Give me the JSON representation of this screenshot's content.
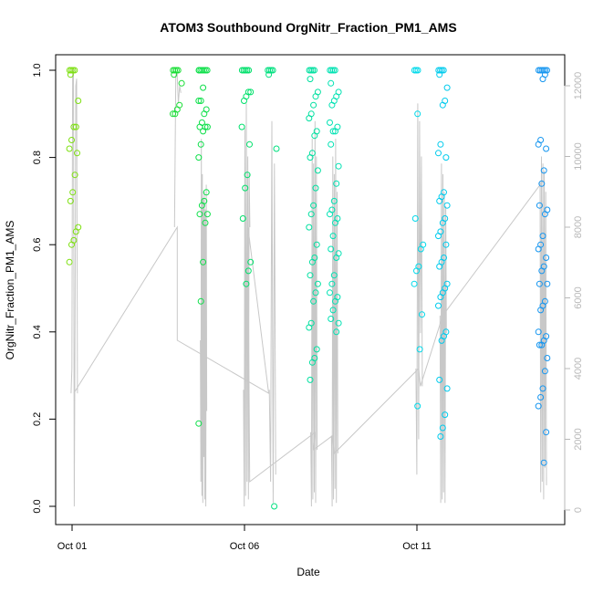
{
  "chart_data": {
    "type": "scatter",
    "title": "ATOM3 Southbound OrgNitr_Fraction_PM1_AMS",
    "xlabel": "Date",
    "ylabel": "OrgNitr_Fraction_PM1_AMS",
    "x_range_days": [
      0.0,
      14.0
    ],
    "ylim": [
      0.0,
      1.0
    ],
    "y2lim": [
      0,
      12000
    ],
    "x_ticks": [
      {
        "day": 0,
        "label": "Oct 01"
      },
      {
        "day": 5,
        "label": "Oct 06"
      },
      {
        "day": 10,
        "label": "Oct 11"
      }
    ],
    "y_ticks": [
      "0.0",
      "0.2",
      "0.4",
      "0.6",
      "0.8",
      "1.0"
    ],
    "y_tick_values": [
      0,
      0.2,
      0.4,
      0.6,
      0.8,
      1.0
    ],
    "y2_ticks": [
      "0",
      "2000",
      "4000",
      "6000",
      "8000",
      "10000",
      "12000"
    ],
    "y2_tick_values": [
      0,
      2000,
      4000,
      6000,
      8000,
      10000,
      12000
    ],
    "point_color_scale": [
      "#7fe010",
      "#22dd22",
      "#00e060",
      "#00e0a0",
      "#00e8e8",
      "#00b8f0",
      "#1a90f0"
    ],
    "line_color": "#c8c8c8",
    "flights": [
      {
        "day": 0.05,
        "points": [
          1.0,
          1.0,
          1.0,
          1.0,
          0.99,
          0.93,
          0.87,
          0.87,
          0.84,
          0.82,
          0.81,
          0.76,
          0.72,
          0.7,
          0.64,
          0.63,
          0.61,
          0.6,
          0.56
        ],
        "altitude_trace": [
          3300,
          4000,
          12300,
          12500,
          100,
          5400,
          12000,
          12200,
          3300
        ]
      },
      {
        "day": 3.05,
        "points": [
          1.0,
          1.0,
          1.0,
          1.0,
          0.99,
          0.97,
          0.92,
          0.91,
          0.9,
          0.9
        ],
        "altitude_trace": [
          8000,
          12300,
          12400,
          11500,
          12000,
          11800
        ]
      },
      {
        "day": 3.8,
        "points": [
          1.0,
          1.0,
          1.0,
          1.0,
          1.0,
          1.0,
          1.0,
          0.96,
          0.93,
          0.93,
          0.91,
          0.9,
          0.88,
          0.87,
          0.87,
          0.87,
          0.86,
          0.83,
          0.8,
          0.72,
          0.7,
          0.69,
          0.67,
          0.67,
          0.65,
          0.56,
          0.47,
          0.19
        ],
        "altitude_trace": [
          4800,
          800,
          10500,
          400,
          9500,
          200,
          8800,
          1500,
          9000,
          300,
          8500,
          100,
          9200,
          2800
        ]
      },
      {
        "day": 5.05,
        "points": [
          1.0,
          1.0,
          1.0,
          1.0,
          1.0,
          0.95,
          0.95,
          0.94,
          0.93,
          0.87,
          0.83,
          0.76,
          0.73,
          0.66,
          0.56,
          0.54,
          0.51
        ],
        "altitude_trace": [
          3400,
          100,
          10800,
          400,
          11500,
          800,
          10000,
          300,
          9500,
          8000
        ]
      },
      {
        "day": 5.8,
        "points": [
          1.0,
          1.0,
          1.0,
          1.0,
          0.99,
          0.82,
          0.0
        ],
        "altitude_trace": [
          3400,
          800,
          11000,
          200,
          9800,
          1000
        ]
      },
      {
        "day": 7.0,
        "points": [
          1.0,
          1.0,
          1.0,
          1.0,
          0.98,
          0.95,
          0.94,
          0.92,
          0.9,
          0.89,
          0.86,
          0.85,
          0.81,
          0.8,
          0.77,
          0.73,
          0.69,
          0.67,
          0.64,
          0.6,
          0.57,
          0.56,
          0.53,
          0.51,
          0.49,
          0.47,
          0.42,
          0.41,
          0.36,
          0.34,
          0.33,
          0.29
        ],
        "altitude_trace": [
          2200,
          100,
          10500,
          300,
          9800,
          500,
          11000,
          200,
          10000,
          1700
        ]
      },
      {
        "day": 7.6,
        "points": [
          1.0,
          1.0,
          1.0,
          1.0,
          0.97,
          0.95,
          0.94,
          0.93,
          0.92,
          0.88,
          0.87,
          0.86,
          0.86,
          0.83,
          0.78,
          0.74,
          0.7,
          0.68,
          0.67,
          0.66,
          0.65,
          0.62,
          0.59,
          0.58,
          0.57,
          0.53,
          0.51,
          0.49,
          0.48,
          0.47,
          0.45,
          0.43,
          0.42,
          0.4
        ],
        "altitude_trace": [
          2100,
          100,
          10000,
          300,
          9500,
          600,
          10500,
          200,
          9000,
          1600
        ]
      },
      {
        "day": 10.05,
        "points": [
          1.0,
          1.0,
          1.0,
          0.9,
          0.66,
          0.6,
          0.59,
          0.55,
          0.54,
          0.51,
          0.44,
          0.36,
          0.23
        ],
        "altitude_trace": [
          4000,
          1000,
          11500,
          2000,
          11000,
          5000,
          10000,
          3500
        ]
      },
      {
        "day": 10.75,
        "points": [
          1.0,
          1.0,
          1.0,
          1.0,
          0.99,
          0.96,
          0.93,
          0.92,
          0.83,
          0.81,
          0.8,
          0.72,
          0.71,
          0.7,
          0.69,
          0.66,
          0.65,
          0.63,
          0.62,
          0.6,
          0.57,
          0.56,
          0.55,
          0.51,
          0.5,
          0.49,
          0.48,
          0.46,
          0.4,
          0.39,
          0.38,
          0.29,
          0.27,
          0.21,
          0.18,
          0.16
        ],
        "altitude_trace": [
          5500,
          200,
          9800,
          300,
          9500,
          500,
          9000,
          200,
          8600,
          5000
        ]
      },
      {
        "day": 13.65,
        "points": [
          1.0,
          1.0,
          1.0,
          1.0,
          1.0,
          1.0,
          0.99,
          0.98,
          0.84,
          0.83,
          0.82,
          0.77,
          0.74,
          0.69,
          0.68,
          0.67,
          0.62,
          0.6,
          0.59,
          0.57,
          0.55,
          0.54,
          0.51,
          0.51,
          0.47,
          0.46,
          0.45,
          0.4,
          0.39,
          0.38,
          0.37,
          0.37,
          0.34,
          0.31,
          0.27,
          0.25,
          0.23,
          0.17,
          0.1
        ],
        "altitude_trace": [
          9300,
          500,
          10000,
          800,
          9800,
          300,
          9600,
          1200,
          9000,
          700
        ]
      }
    ],
    "connector_trace": [
      {
        "day": 0.05,
        "alt": 3300
      },
      {
        "day": 3.05,
        "alt": 8000
      },
      {
        "day": 3.05,
        "alt": 4800
      },
      {
        "day": 5.7,
        "alt": 3300
      },
      {
        "day": 5.1,
        "alt": 8000
      },
      {
        "day": 5.15,
        "alt": 800
      },
      {
        "day": 7.05,
        "alt": 2200
      },
      {
        "day": 7.0,
        "alt": 1700
      },
      {
        "day": 7.55,
        "alt": 2100
      },
      {
        "day": 7.6,
        "alt": 1600
      },
      {
        "day": 10.05,
        "alt": 4000
      },
      {
        "day": 10.1,
        "alt": 3500
      },
      {
        "day": 10.75,
        "alt": 5500
      },
      {
        "day": 13.65,
        "alt": 9300
      }
    ]
  }
}
